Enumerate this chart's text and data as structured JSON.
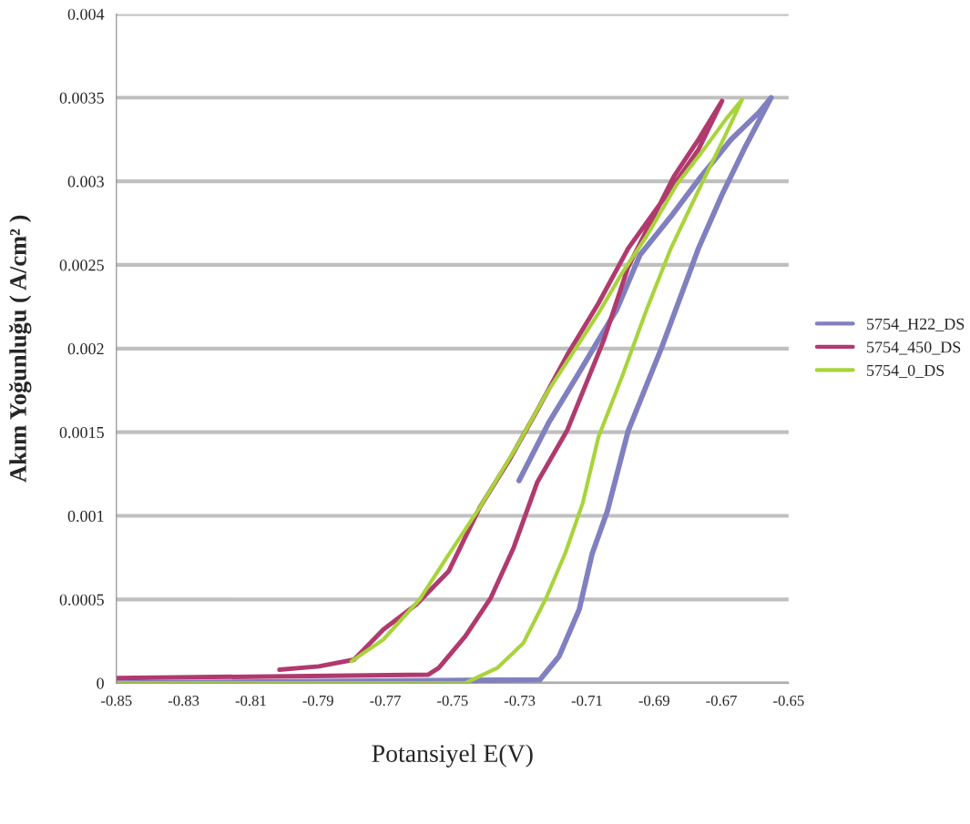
{
  "chart_data": {
    "type": "line",
    "xlabel": "Potansiyel E(V)",
    "ylabel": "Akım Yoğunluğu ( A/cm² )",
    "xlim": [
      -0.85,
      -0.65
    ],
    "xticks": [
      -0.85,
      -0.83,
      -0.81,
      -0.79,
      -0.77,
      -0.75,
      -0.73,
      -0.71,
      -0.69,
      -0.67,
      -0.65
    ],
    "ylim": [
      0,
      0.004
    ],
    "yticks": [
      0,
      0.0005,
      0.001,
      0.0015,
      0.002,
      0.0025,
      0.003,
      0.0035,
      0.004
    ],
    "grid": "y",
    "legend": "right",
    "marker": "none",
    "line_style": "solid",
    "series": [
      {
        "name": "5754_H22_DS",
        "color": "#8080c0",
        "x": [
          -0.85,
          -0.724,
          -0.7183,
          -0.7123,
          -0.7085,
          -0.7039,
          -0.6977,
          -0.6877,
          -0.6768,
          -0.6698,
          -0.6633,
          -0.6552,
          -0.6589,
          -0.6671,
          -0.676,
          -0.685,
          -0.6942,
          -0.7012,
          -0.7066,
          -0.7131,
          -0.7213,
          -0.7302
        ],
        "values": [
          0,
          2e-05,
          0.00016,
          0.00044,
          0.00077,
          0.00103,
          0.00151,
          0.00201,
          0.0026,
          0.00292,
          0.00319,
          0.0035,
          0.00341,
          0.00325,
          0.00303,
          0.00279,
          0.00256,
          0.00223,
          0.00205,
          0.00183,
          0.00156,
          0.00121
        ]
      },
      {
        "name": "5754_450_DS",
        "color": "#b03a6e",
        "x": [
          -0.85,
          -0.7573,
          -0.7541,
          -0.7462,
          -0.7386,
          -0.7318,
          -0.7248,
          -0.7159,
          -0.705,
          -0.6977,
          -0.6904,
          -0.6841,
          -0.6768,
          -0.6698,
          -0.6768,
          -0.6841,
          -0.6977,
          -0.7066,
          -0.7159,
          -0.7248,
          -0.7329,
          -0.7419,
          -0.7511,
          -0.7608,
          -0.7706,
          -0.7793,
          -0.7898,
          -0.8015
        ],
        "values": [
          3e-05,
          5e-05,
          9e-05,
          0.00028,
          0.00051,
          0.00081,
          0.0012,
          0.00151,
          0.00205,
          0.00249,
          0.00278,
          0.00303,
          0.00325,
          0.00348,
          0.00319,
          0.00298,
          0.0026,
          0.00227,
          0.00196,
          0.00163,
          0.00134,
          0.00105,
          0.00067,
          0.00047,
          0.00032,
          0.00014,
          0.0001,
          8e-05
        ]
      },
      {
        "name": "5754_0_DS",
        "color": "#a8d43a",
        "x": [
          -0.85,
          -0.7462,
          -0.7367,
          -0.7289,
          -0.7221,
          -0.7164,
          -0.7112,
          -0.7066,
          -0.6996,
          -0.6923,
          -0.685,
          -0.676,
          -0.6687,
          -0.6638,
          -0.6687,
          -0.676,
          -0.6833,
          -0.6923,
          -0.6996,
          -0.7066,
          -0.714,
          -0.7221,
          -0.731,
          -0.7419,
          -0.7511,
          -0.7598,
          -0.7706,
          -0.7801
        ],
        "values": [
          0,
          0,
          9e-05,
          0.00024,
          0.00051,
          0.00078,
          0.00108,
          0.00147,
          0.00183,
          0.00223,
          0.0026,
          0.00298,
          0.00328,
          0.00349,
          0.00337,
          0.00317,
          0.00298,
          0.00267,
          0.00245,
          0.00221,
          0.00198,
          0.00173,
          0.00141,
          0.00105,
          0.00077,
          0.0005,
          0.00026,
          0.00013
        ]
      }
    ]
  }
}
